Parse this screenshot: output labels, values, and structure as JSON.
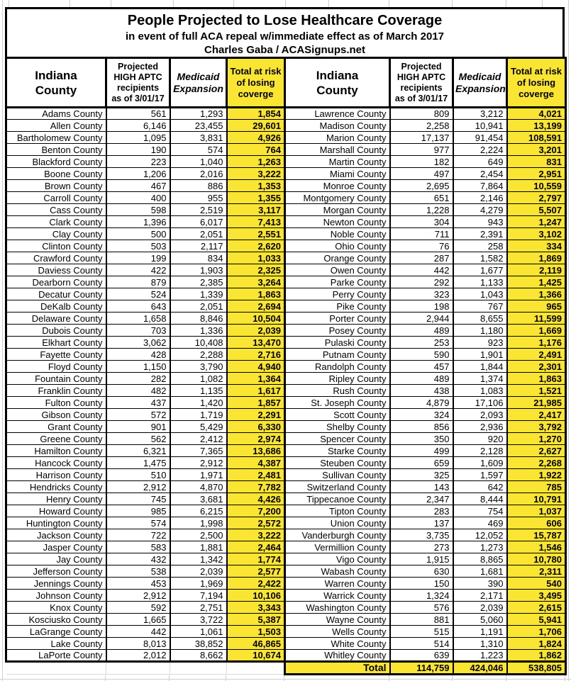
{
  "title": {
    "line1": "People Projected to Lose Healthcare Coverage",
    "line2": "in event of full ACA repeal w/immediate effect as of March 2017",
    "line3": "Charles Gaba / ACASignups.net"
  },
  "header": {
    "county": "Indiana\nCounty",
    "aptc": "Projected\nHIGH APTC\nrecipients\nas of 3/01/17",
    "medicaid": "Medicaid\nExpansion",
    "total": "Total at risk\nof losing\ncoverge"
  },
  "colors": {
    "highlight": "#FAE532",
    "border": "#000000",
    "gridline": "#cfcfcf"
  },
  "chart_data": {
    "type": "table",
    "title": "People Projected to Lose Healthcare Coverage",
    "subtitle": "in event of full ACA repeal w/immediate effect as of March 2017",
    "attribution": "Charles Gaba / ACASignups.net",
    "columns": [
      "Indiana County",
      "Projected HIGH APTC recipients as of 3/01/17",
      "Medicaid Expansion",
      "Total at risk of losing coverge"
    ],
    "left_rows": [
      [
        "Adams County",
        561,
        1293,
        1854
      ],
      [
        "Allen County",
        6146,
        23455,
        29601
      ],
      [
        "Bartholomew County",
        1095,
        3831,
        4926
      ],
      [
        "Benton County",
        190,
        574,
        764
      ],
      [
        "Blackford County",
        223,
        1040,
        1263
      ],
      [
        "Boone County",
        1206,
        2016,
        3222
      ],
      [
        "Brown County",
        467,
        886,
        1353
      ],
      [
        "Carroll County",
        400,
        955,
        1355
      ],
      [
        "Cass County",
        598,
        2519,
        3117
      ],
      [
        "Clark County",
        1396,
        6017,
        7413
      ],
      [
        "Clay County",
        500,
        2051,
        2551
      ],
      [
        "Clinton County",
        503,
        2117,
        2620
      ],
      [
        "Crawford County",
        199,
        834,
        1033
      ],
      [
        "Daviess County",
        422,
        1903,
        2325
      ],
      [
        "Dearborn County",
        879,
        2385,
        3264
      ],
      [
        "Decatur County",
        524,
        1339,
        1863
      ],
      [
        "DeKalb County",
        643,
        2051,
        2694
      ],
      [
        "Delaware County",
        1658,
        8846,
        10504
      ],
      [
        "Dubois County",
        703,
        1336,
        2039
      ],
      [
        "Elkhart County",
        3062,
        10408,
        13470
      ],
      [
        "Fayette County",
        428,
        2288,
        2716
      ],
      [
        "Floyd County",
        1150,
        3790,
        4940
      ],
      [
        "Fountain County",
        282,
        1082,
        1364
      ],
      [
        "Franklin County",
        482,
        1135,
        1617
      ],
      [
        "Fulton County",
        437,
        1420,
        1857
      ],
      [
        "Gibson County",
        572,
        1719,
        2291
      ],
      [
        "Grant County",
        901,
        5429,
        6330
      ],
      [
        "Greene County",
        562,
        2412,
        2974
      ],
      [
        "Hamilton County",
        6321,
        7365,
        13686
      ],
      [
        "Hancock County",
        1475,
        2912,
        4387
      ],
      [
        "Harrison County",
        510,
        1971,
        2481
      ],
      [
        "Hendricks County",
        2912,
        4870,
        7782
      ],
      [
        "Henry County",
        745,
        3681,
        4426
      ],
      [
        "Howard County",
        985,
        6215,
        7200
      ],
      [
        "Huntington County",
        574,
        1998,
        2572
      ],
      [
        "Jackson County",
        722,
        2500,
        3222
      ],
      [
        "Jasper County",
        583,
        1881,
        2464
      ],
      [
        "Jay County",
        432,
        1342,
        1774
      ],
      [
        "Jefferson County",
        538,
        2039,
        2577
      ],
      [
        "Jennings County",
        453,
        1969,
        2422
      ],
      [
        "Johnson County",
        2912,
        7194,
        10106
      ],
      [
        "Knox County",
        592,
        2751,
        3343
      ],
      [
        "Kosciusko County",
        1665,
        3722,
        5387
      ],
      [
        "LaGrange County",
        442,
        1061,
        1503
      ],
      [
        "Lake County",
        8013,
        38852,
        46865
      ],
      [
        "LaPorte County",
        2012,
        8662,
        10674
      ]
    ],
    "right_rows": [
      [
        "Lawrence County",
        809,
        3212,
        4021
      ],
      [
        "Madison County",
        2258,
        10941,
        13199
      ],
      [
        "Marion County",
        17137,
        91454,
        108591
      ],
      [
        "Marshall County",
        977,
        2224,
        3201
      ],
      [
        "Martin County",
        182,
        649,
        831
      ],
      [
        "Miami County",
        497,
        2454,
        2951
      ],
      [
        "Monroe County",
        2695,
        7864,
        10559
      ],
      [
        "Montgomery County",
        651,
        2146,
        2797
      ],
      [
        "Morgan County",
        1228,
        4279,
        5507
      ],
      [
        "Newton County",
        304,
        943,
        1247
      ],
      [
        "Noble County",
        711,
        2391,
        3102
      ],
      [
        "Ohio County",
        76,
        258,
        334
      ],
      [
        "Orange County",
        287,
        1582,
        1869
      ],
      [
        "Owen County",
        442,
        1677,
        2119
      ],
      [
        "Parke County",
        292,
        1133,
        1425
      ],
      [
        "Perry County",
        323,
        1043,
        1366
      ],
      [
        "Pike County",
        198,
        767,
        965
      ],
      [
        "Porter County",
        2944,
        8655,
        11599
      ],
      [
        "Posey County",
        489,
        1180,
        1669
      ],
      [
        "Pulaski County",
        253,
        923,
        1176
      ],
      [
        "Putnam County",
        590,
        1901,
        2491
      ],
      [
        "Randolph County",
        457,
        1844,
        2301
      ],
      [
        "Ripley County",
        489,
        1374,
        1863
      ],
      [
        "Rush County",
        438,
        1083,
        1521
      ],
      [
        "St. Joseph County",
        4879,
        17106,
        21985
      ],
      [
        "Scott County",
        324,
        2093,
        2417
      ],
      [
        "Shelby County",
        856,
        2936,
        3792
      ],
      [
        "Spencer County",
        350,
        920,
        1270
      ],
      [
        "Starke County",
        499,
        2128,
        2627
      ],
      [
        "Steuben County",
        659,
        1609,
        2268
      ],
      [
        "Sullivan County",
        325,
        1597,
        1922
      ],
      [
        "Switzerland County",
        143,
        642,
        785
      ],
      [
        "Tippecanoe County",
        2347,
        8444,
        10791
      ],
      [
        "Tipton County",
        283,
        754,
        1037
      ],
      [
        "Union County",
        137,
        469,
        606
      ],
      [
        "Vanderburgh County",
        3735,
        12052,
        15787
      ],
      [
        "Vermillion County",
        273,
        1273,
        1546
      ],
      [
        "Vigo County",
        1915,
        8865,
        10780
      ],
      [
        "Wabash County",
        630,
        1681,
        2311
      ],
      [
        "Warren County",
        150,
        390,
        540
      ],
      [
        "Warrick County",
        1324,
        2171,
        3495
      ],
      [
        "Washington County",
        576,
        2039,
        2615
      ],
      [
        "Wayne County",
        881,
        5060,
        5941
      ],
      [
        "Wells County",
        515,
        1191,
        1706
      ],
      [
        "White County",
        514,
        1310,
        1824
      ],
      [
        "Whitley County",
        639,
        1223,
        1862
      ]
    ],
    "total_row": [
      "Total",
      114759,
      424046,
      538805
    ]
  }
}
